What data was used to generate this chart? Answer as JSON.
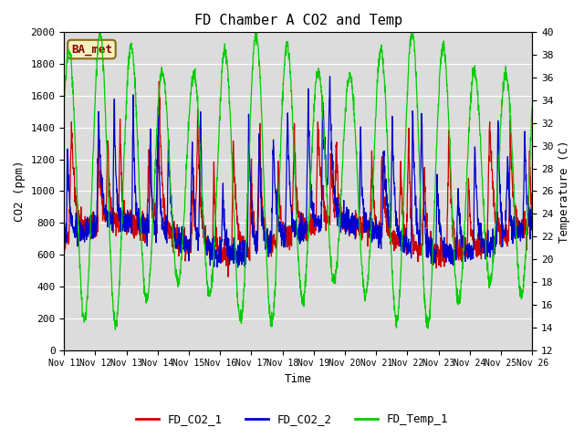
{
  "title": "FD Chamber A CO2 and Temp",
  "xlabel": "Time",
  "ylabel_left": "CO2 (ppm)",
  "ylabel_right": "Temperature (C)",
  "annotation": "BA_met",
  "ylim_left": [
    0,
    2000
  ],
  "ylim_right": [
    12,
    40
  ],
  "plot_bg_color": "#dcdcdc",
  "fig_bg_color": "#ffffff",
  "x_tick_labels": [
    "Nov 11",
    "Nov 12",
    "Nov 13",
    "Nov 14",
    "Nov 15",
    "Nov 16",
    "Nov 17",
    "Nov 18",
    "Nov 19",
    "Nov 20",
    "Nov 21",
    "Nov 22",
    "Nov 23",
    "Nov 24",
    "Nov 25",
    "Nov 26"
  ],
  "line_colors": {
    "co2_1": "#cc0000",
    "co2_2": "#0000cc",
    "temp_1": "#00cc00"
  },
  "line_width": 0.9,
  "legend_entries": [
    "FD_CO2_1",
    "FD_CO2_2",
    "FD_Temp_1"
  ],
  "font_family": "monospace",
  "yticks_left": [
    0,
    200,
    400,
    600,
    800,
    1000,
    1200,
    1400,
    1600,
    1800,
    2000
  ],
  "yticks_right": [
    12,
    14,
    16,
    18,
    20,
    22,
    24,
    26,
    28,
    30,
    32,
    34,
    36,
    38,
    40
  ],
  "grid_color": "#ffffff",
  "title_fontsize": 11,
  "label_fontsize": 9,
  "tick_fontsize": 8,
  "xtick_fontsize": 7
}
